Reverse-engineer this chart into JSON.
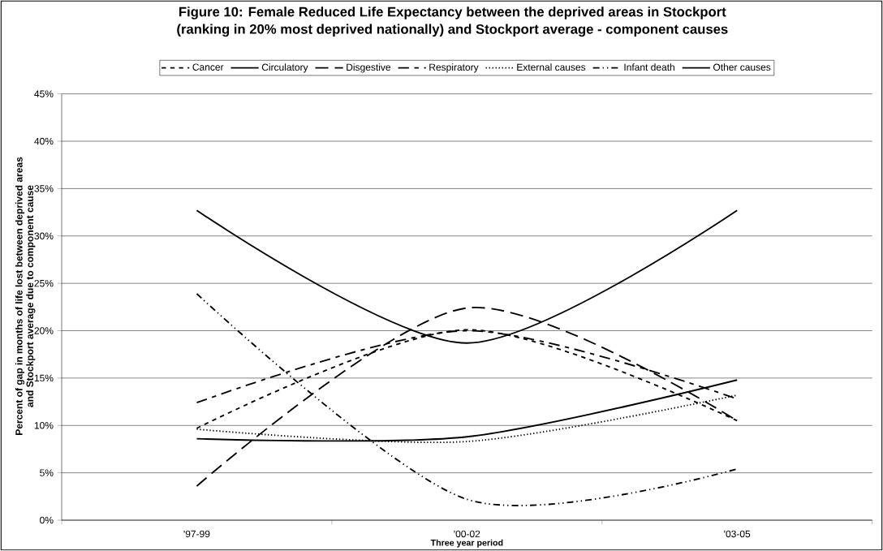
{
  "chart_data": {
    "type": "line",
    "title": "Figure 10: Female Reduced Life Expectancy between the deprived areas in Stockport\n(ranking in 20% most deprived nationally) and Stockport average - component causes",
    "xlabel": "Three year period",
    "ylabel": "Percent of gap in months of life lost between deprived areas\nand Stockport average due to component cause",
    "categories": [
      "'97-99",
      "'00-02",
      "'03-05"
    ],
    "series": [
      {
        "name": "Cancer",
        "color": "#000000",
        "line_style": "dashed",
        "values": [
          9.7,
          20.1,
          10.5
        ]
      },
      {
        "name": "Circulatory",
        "color": "#000000",
        "line_style": "solid",
        "values": [
          32.7,
          18.7,
          32.7
        ]
      },
      {
        "name": "Disgestive",
        "color": "#000000",
        "line_style": "longdash",
        "values": [
          3.6,
          22.4,
          10.5
        ]
      },
      {
        "name": "Respiratory",
        "color": "#000000",
        "line_style": "longdashdot",
        "values": [
          12.4,
          20.0,
          12.8
        ]
      },
      {
        "name": "External causes",
        "color": "#000000",
        "line_style": "dotted",
        "values": [
          9.6,
          8.3,
          13.2
        ]
      },
      {
        "name": "Infant death",
        "color": "#000000",
        "line_style": "dashdotdot",
        "values": [
          23.9,
          2.2,
          5.4
        ]
      },
      {
        "name": "Other causes",
        "color": "#000000",
        "line_style": "solid",
        "values": [
          8.6,
          8.8,
          14.8
        ]
      }
    ],
    "ylim": [
      0,
      45
    ],
    "yticks": [
      {
        "value": 0,
        "label": "0%"
      },
      {
        "value": 5,
        "label": "5%"
      },
      {
        "value": 10,
        "label": "10%"
      },
      {
        "value": 15,
        "label": "15%"
      },
      {
        "value": 20,
        "label": "20%"
      },
      {
        "value": 25,
        "label": "25%"
      },
      {
        "value": 30,
        "label": "30%"
      },
      {
        "value": 35,
        "label": "35%"
      },
      {
        "value": 40,
        "label": "40%"
      },
      {
        "value": 45,
        "label": "45%"
      }
    ],
    "grid": "y",
    "legend": "top",
    "marker": "none"
  }
}
